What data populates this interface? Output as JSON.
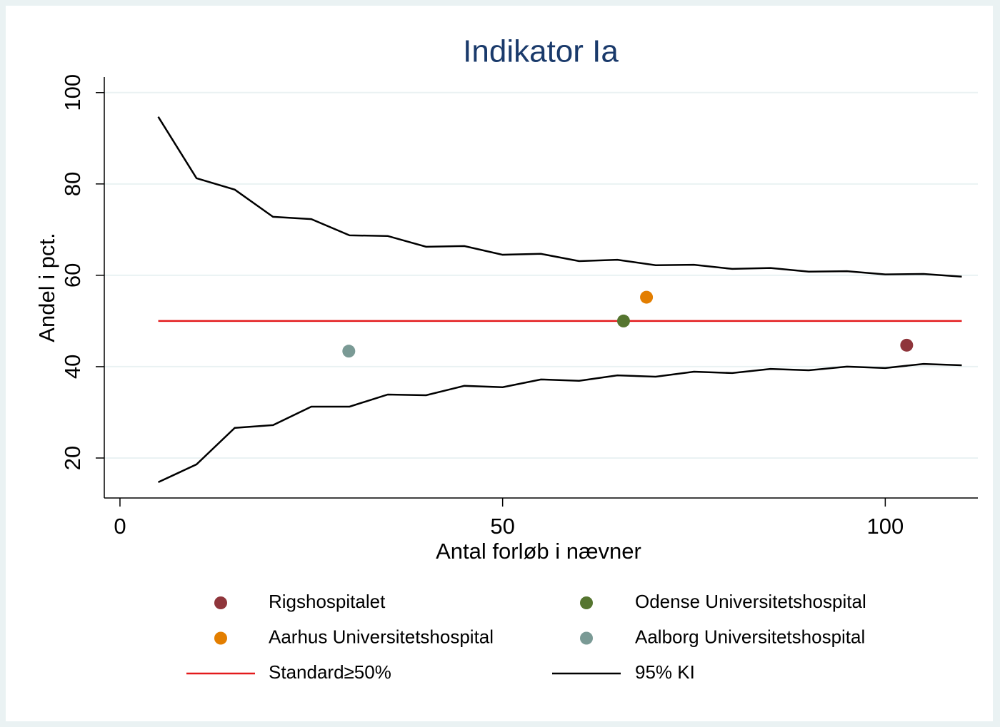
{
  "chart_data": {
    "type": "funnel",
    "title": "Indikator Ia",
    "x_label": "Antal forløb i nævner",
    "y_label": "Andel i pct.",
    "xlim": [
      -2.05,
      112.1
    ],
    "ylim": [
      11.25,
      103.4
    ],
    "xticks": [
      0,
      50,
      100
    ],
    "yticks": [
      20,
      40,
      60,
      80,
      100
    ],
    "grid": true,
    "series": [
      {
        "name": "Rigshospitalet",
        "color": "#8f353b",
        "kind": "point",
        "x": [
          102.8
        ],
        "values": [
          44.7
        ]
      },
      {
        "name": "Odense Universitetshospital",
        "color": "#55752f",
        "kind": "point",
        "x": [
          65.8
        ],
        "values": [
          50
        ]
      },
      {
        "name": "Aarhus Universitetshospital",
        "color": "#e37e00",
        "kind": "point",
        "x": [
          68.8
        ],
        "values": [
          55.2
        ]
      },
      {
        "name": "Aalborg Universitetshospital",
        "color": "#7a9a95",
        "kind": "point",
        "x": [
          29.9
        ],
        "values": [
          43.4
        ]
      },
      {
        "name": "Standard≥50%",
        "color": "#e31a1c",
        "kind": "line",
        "x": [
          5,
          110
        ],
        "values": [
          50,
          50
        ]
      },
      {
        "name": "95% KI",
        "color": "#000000",
        "kind": "band-lines",
        "x": [
          5,
          10,
          15,
          20,
          25,
          30,
          35,
          40,
          45,
          50,
          55,
          60,
          65,
          70,
          75,
          80,
          85,
          90,
          95,
          100,
          105,
          110
        ],
        "upper": [
          94.7,
          81.25,
          78.75,
          72.8,
          72.3,
          68.75,
          68.6,
          66.25,
          66.4,
          64.5,
          64.7,
          63.1,
          63.4,
          62.2,
          62.3,
          61.4,
          61.6,
          60.8,
          60.9,
          60.2,
          60.3,
          59.7
        ],
        "lower": [
          14.7,
          18.6,
          26.6,
          27.2,
          31.25,
          31.25,
          33.9,
          33.75,
          35.8,
          35.5,
          37.2,
          36.9,
          38.1,
          37.8,
          38.9,
          38.6,
          39.5,
          39.2,
          40,
          39.7,
          40.6,
          40.3
        ]
      }
    ]
  }
}
